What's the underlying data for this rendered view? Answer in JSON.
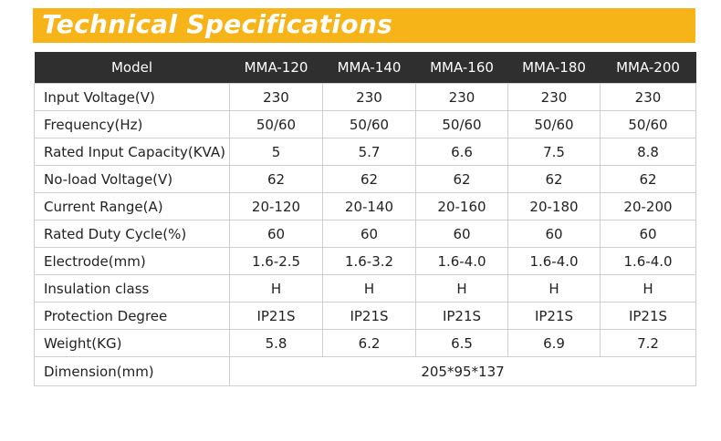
{
  "title": "Technical Specifications",
  "table": {
    "header": [
      "Model",
      "MMA-120",
      "MMA-140",
      "MMA-160",
      "MMA-180",
      "MMA-200"
    ],
    "rows": [
      {
        "label": "Input Voltage(V)",
        "values": [
          "230",
          "230",
          "230",
          "230",
          "230"
        ]
      },
      {
        "label": "Frequency(Hz)",
        "values": [
          "50/60",
          "50/60",
          "50/60",
          "50/60",
          "50/60"
        ]
      },
      {
        "label": "Rated Input Capacity(KVA)",
        "values": [
          "5",
          "5.7",
          "6.6",
          "7.5",
          "8.8"
        ]
      },
      {
        "label": "No-load Voltage(V)",
        "values": [
          "62",
          "62",
          "62",
          "62",
          "62"
        ]
      },
      {
        "label": "Current Range(A)",
        "values": [
          "20-120",
          "20-140",
          "20-160",
          "20-180",
          "20-200"
        ]
      },
      {
        "label": "Rated Duty Cycle(%)",
        "values": [
          "60",
          "60",
          "60",
          "60",
          "60"
        ]
      },
      {
        "label": "Electrode(mm)",
        "values": [
          "1.6-2.5",
          "1.6-3.2",
          "1.6-4.0",
          "1.6-4.0",
          "1.6-4.0"
        ]
      },
      {
        "label": "Insulation class",
        "values": [
          "H",
          "H",
          "H",
          "H",
          "H"
        ]
      },
      {
        "label": "Protection Degree",
        "values": [
          "IP21S",
          "IP21S",
          "IP21S",
          "IP21S",
          "IP21S"
        ]
      },
      {
        "label": "Weight(KG)",
        "values": [
          "5.8",
          "6.2",
          "6.5",
          "6.9",
          "7.2"
        ]
      }
    ],
    "dimension": {
      "label": "Dimension(mm)",
      "value": "205*95*137"
    }
  },
  "colors": {
    "banner": "#f7b418",
    "header_bg": "#2f2f2f",
    "border": "#cfcfcf"
  }
}
